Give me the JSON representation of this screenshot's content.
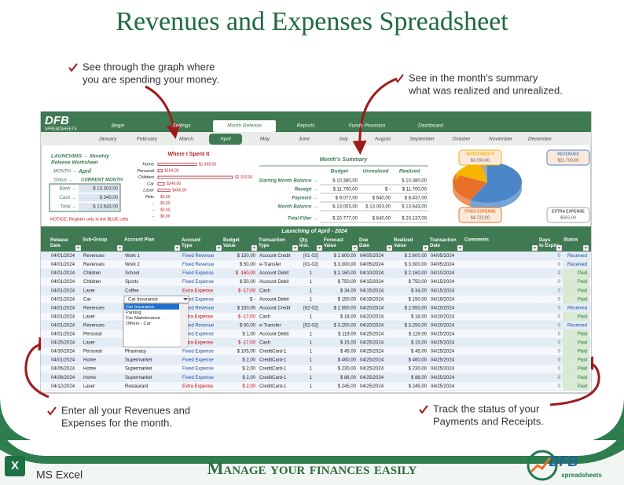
{
  "header": {
    "title": "Revenues and Expenses Spreadsheet"
  },
  "callouts": [
    {
      "lines": [
        "See through the graph where",
        "you are spending your money."
      ]
    },
    {
      "lines": [
        "See in the month's summary",
        "what was realized and unrealized."
      ]
    },
    {
      "lines": [
        "Enter all your Revenues and",
        "Expenses for the month."
      ]
    },
    {
      "lines": [
        "Track the status of your",
        "Payments and Receipts."
      ]
    }
  ],
  "spreadsheet": {
    "logo": "DFB",
    "logo_sub": "SPREADSHEETS",
    "tabs": [
      "Begin",
      "Settings",
      "Month Release",
      "Reports",
      "Funds Provision",
      "Dashboard"
    ],
    "active_tab": 2,
    "months": [
      "January",
      "February",
      "March",
      "April",
      "May",
      "June",
      "July",
      "August",
      "September",
      "October",
      "November",
      "December"
    ],
    "active_month": 3,
    "left_panel": {
      "title_lines": [
        "LAUNCHING → Monthly",
        "Release Worksheet"
      ],
      "month_label": "MONTH →",
      "month": "April",
      "status_label": "Status →",
      "status": "CURRENT MONTH",
      "rows": [
        {
          "label": "Bank →",
          "value": "$    13.303,00"
        },
        {
          "label": "Cash →",
          "value": "$         340,00"
        },
        {
          "label": "Total →",
          "value": "$    13.643,00"
        }
      ],
      "notice": "NOTICE: Register only in the BLUE cells"
    },
    "where_chart": {
      "type": "bar",
      "title": "Where I Spent It",
      "categories": [
        "Home",
        "Personal",
        "Children",
        "Car",
        "Laser",
        "Pets",
        "-",
        "-",
        "-"
      ],
      "values": [
        1498,
        164,
        2910,
        249,
        466,
        0,
        0,
        0,
        0
      ],
      "value_labels": [
        "$1.498,00",
        "$164,00",
        "$2.910,00",
        "$249,00",
        "$466,00",
        "$0,00",
        "$0,00",
        "$0,00",
        "$0,00"
      ],
      "color": "#b3262b"
    },
    "summary": {
      "title": "Month's Summary",
      "columns": [
        "Budget",
        "Unrealized",
        "Realized"
      ],
      "rows": [
        {
          "label": "Starting Month Balance →",
          "cells": [
            "$  10.380,00",
            null,
            "$  10.380,00"
          ]
        },
        {
          "label": "Receipt →",
          "cells": [
            "$  11.700,00",
            "$         -",
            "$  11.700,00"
          ]
        },
        {
          "label": "Payment →",
          "cells": [
            "$    9.077,00",
            "$     640,00",
            "$    8.437,00"
          ]
        },
        {
          "label": "Month Balance →",
          "cells": [
            "$  13.003,00",
            "$ 13.003,00",
            "$  13.643,00"
          ]
        },
        {
          "label": "Total Filter →",
          "cells": [
            "$  20.777,00",
            "$     640,00",
            "$  20.137,00"
          ]
        }
      ]
    },
    "pie": {
      "type": "pie",
      "labels": [
        "REVENUES",
        "FIXED EXPENSE",
        "INVESTMENTS",
        "EXTRA EXPENSE"
      ],
      "values": [
        11700,
        4722,
        3150,
        565
      ],
      "value_labels": [
        "$11.700,00",
        "$4.722,00",
        "$3.150,00",
        "$565,00"
      ],
      "colors": [
        "#4a86c8",
        "#e8712a",
        "#f5b400",
        "#a5a5a5"
      ]
    },
    "table": {
      "title": "Launching of  April - 2024",
      "headers": [
        "Release Date",
        "Sub-Group",
        "Account Plan",
        "Account Type",
        "Budget Value",
        "Transaction Type",
        "Qty. Inst.",
        "Forecast Value",
        "Due Date",
        "Realized Value",
        "Transaction Date",
        "Comments",
        "Days to Expire",
        "Status"
      ],
      "rows": [
        {
          "date": "04/01/2024",
          "sub_group": "Revenues",
          "account_plan": "Work 1",
          "account_type": "Fixed Revenue",
          "budget": "$      150,00",
          "transaction_type": "Account Credit",
          "qty": "[01-02]",
          "forecast": "$    2.600,00",
          "due": "04/05/2024",
          "realized": "$    2.600,00",
          "transaction_date": "04/05/2024",
          "days": 0,
          "status": "Received"
        },
        {
          "date": "04/01/2024",
          "sub_group": "Revenues",
          "account_plan": "Work 2",
          "account_type": "Fixed Revenue",
          "budget": "$        50,00",
          "transaction_type": "e-Transfer",
          "qty": "[01-02]",
          "forecast": "$    3.300,00",
          "due": "04/05/2024",
          "realized": "$    3.300,00",
          "transaction_date": "04/05/2024",
          "days": 0,
          "status": "Received"
        },
        {
          "date": "04/01/2024",
          "sub_group": "Children",
          "account_plan": "School",
          "account_type": "Fixed Expense",
          "budget": "$     -160,00",
          "transaction_type": "Account Debit",
          "qty": "1",
          "forecast": "$    2.160,00",
          "due": "04/10/2024",
          "realized": "$    2.160,00",
          "transaction_date": "04/10/2024",
          "days": 0,
          "status": "Paid"
        },
        {
          "date": "04/01/2024",
          "sub_group": "Children",
          "account_plan": "Sports",
          "account_type": "Fixed Expense",
          "budget": "$        50,00",
          "transaction_type": "Account Debit",
          "qty": "1",
          "forecast": "$       750,00",
          "due": "04/15/2024",
          "realized": "$       750,00",
          "transaction_date": "04/15/2024",
          "days": 0,
          "status": "Paid"
        },
        {
          "date": "04/01/2024",
          "sub_group": "Laser",
          "account_plan": "Coffee",
          "account_type": "Extra Expense",
          "budget": "$       -17,00",
          "transaction_type": "Cash",
          "qty": "1",
          "forecast": "$         34,00",
          "due": "04/15/2024",
          "realized": "$         34,00",
          "transaction_date": "04/15/2024",
          "days": 0,
          "status": "Paid"
        },
        {
          "date": "04/01/2024",
          "sub_group": "Car",
          "account_type": "Fixed Expense",
          "budget": "$          -",
          "transaction_type": "Account Debit",
          "qty": "1",
          "forecast": "$       150,00",
          "due": "04/19/2024",
          "realized": "$       150,00",
          "transaction_date": "04/19/2024",
          "days": 0,
          "status": "Paid"
        },
        {
          "date": "04/01/2024",
          "sub_group": "Revenues",
          "account_type": "Fixed Revenue",
          "budget": "$      150,00",
          "transaction_type": "Account Credit",
          "qty": "[02-02]",
          "forecast": "$    2.550,00",
          "due": "04/20/2024",
          "realized": "$    2.550,00",
          "transaction_date": "04/20/2024",
          "days": 0,
          "status": "Received"
        },
        {
          "date": "04/01/2024",
          "sub_group": "Laser",
          "account_type": "Extra Expense",
          "budget": "$       -17,00",
          "transaction_type": "Cash",
          "qty": "1",
          "forecast": "$         18,00",
          "due": "04/20/2024",
          "realized": "$         18,00",
          "transaction_date": "04/20/2024",
          "days": 0,
          "status": "Paid"
        },
        {
          "date": "04/01/2024",
          "sub_group": "Revenues",
          "account_type": "Fixed Revenue",
          "budget": "$        50,00",
          "transaction_type": "e-Transfer",
          "qty": "[02-02]",
          "forecast": "$    3.250,00",
          "due": "04/20/2024",
          "realized": "$    3.250,00",
          "transaction_date": "04/20/2024",
          "days": 0,
          "status": "Received"
        },
        {
          "date": "04/01/2024",
          "sub_group": "Personal",
          "account_type": "Fixed Expense",
          "budget": "$          1,00",
          "transaction_type": "Account Debit",
          "qty": "1",
          "forecast": "$       119,00",
          "due": "04/25/2024",
          "realized": "$       119,00",
          "transaction_date": "04/25/2024",
          "days": 0,
          "status": "Paid"
        },
        {
          "date": "04/25/2024",
          "sub_group": "Laser",
          "account_type": "Extra Expense",
          "budget": "$       -17,00",
          "transaction_type": "Cash",
          "qty": "1",
          "forecast": "$         15,00",
          "due": "04/25/2024",
          "realized": "$         15,00",
          "transaction_date": "04/25/2024",
          "days": 0,
          "status": "Paid"
        },
        {
          "date": "04/30/2024",
          "sub_group": "Personal",
          "account_plan": "Pharmacy",
          "account_type": "Fixed Expense",
          "budget": "$      105,00",
          "transaction_type": "CreditCard-1",
          "qty": "1",
          "forecast": "$         45,00",
          "due": "04/25/2024",
          "realized": "$         45,00",
          "transaction_date": "04/25/2024",
          "days": 0,
          "status": "Paid"
        },
        {
          "date": "04/01/2024",
          "sub_group": "Home",
          "account_plan": "Supermarket",
          "account_type": "Fixed Expense",
          "budget": "$          2,00",
          "transaction_type": "CreditCard-1",
          "qty": "1",
          "forecast": "$       460,00",
          "due": "04/25/2024",
          "realized": "$       460,00",
          "transaction_date": "04/25/2024",
          "days": 0,
          "status": "Paid"
        },
        {
          "date": "04/05/2024",
          "sub_group": "Home",
          "account_plan": "Supermarket",
          "account_type": "Fixed Expense",
          "budget": "$          2,00",
          "transaction_type": "CreditCard-1",
          "qty": "1",
          "forecast": "$       230,00",
          "due": "04/25/2024",
          "realized": "$       230,00",
          "transaction_date": "04/25/2024",
          "days": 0,
          "status": "Paid"
        },
        {
          "date": "04/08/2024",
          "sub_group": "Home",
          "account_plan": "Supermarket",
          "account_type": "Fixed Expense",
          "budget": "$          2,00",
          "transaction_type": "CreditCard-1",
          "qty": "1",
          "forecast": "$         88,00",
          "due": "04/25/2024",
          "realized": "$         88,00",
          "transaction_date": "04/25/2024",
          "days": 0,
          "status": "Paid"
        },
        {
          "date": "04/12/2024",
          "sub_group": "Laser",
          "account_plan": "Restaurant",
          "account_type": "Extra Expense",
          "budget": "$          2,00",
          "transaction_type": "CreditCard-1",
          "qty": "1",
          "forecast": "$       245,00",
          "due": "04/25/2024",
          "realized": "$       245,00",
          "transaction_date": "04/25/2024",
          "days": 0,
          "status": "Paid"
        }
      ]
    },
    "dropdown": {
      "row": 5,
      "selected": "Car Insurance",
      "options": [
        "Car Insurance",
        "Parking",
        "Car Maintenance",
        "Others - Car"
      ]
    }
  },
  "footer": {
    "tagline": "Manage your finances easily",
    "app": "MS Excel",
    "brand": "DFB",
    "brand_sub": "spreadsheets"
  }
}
